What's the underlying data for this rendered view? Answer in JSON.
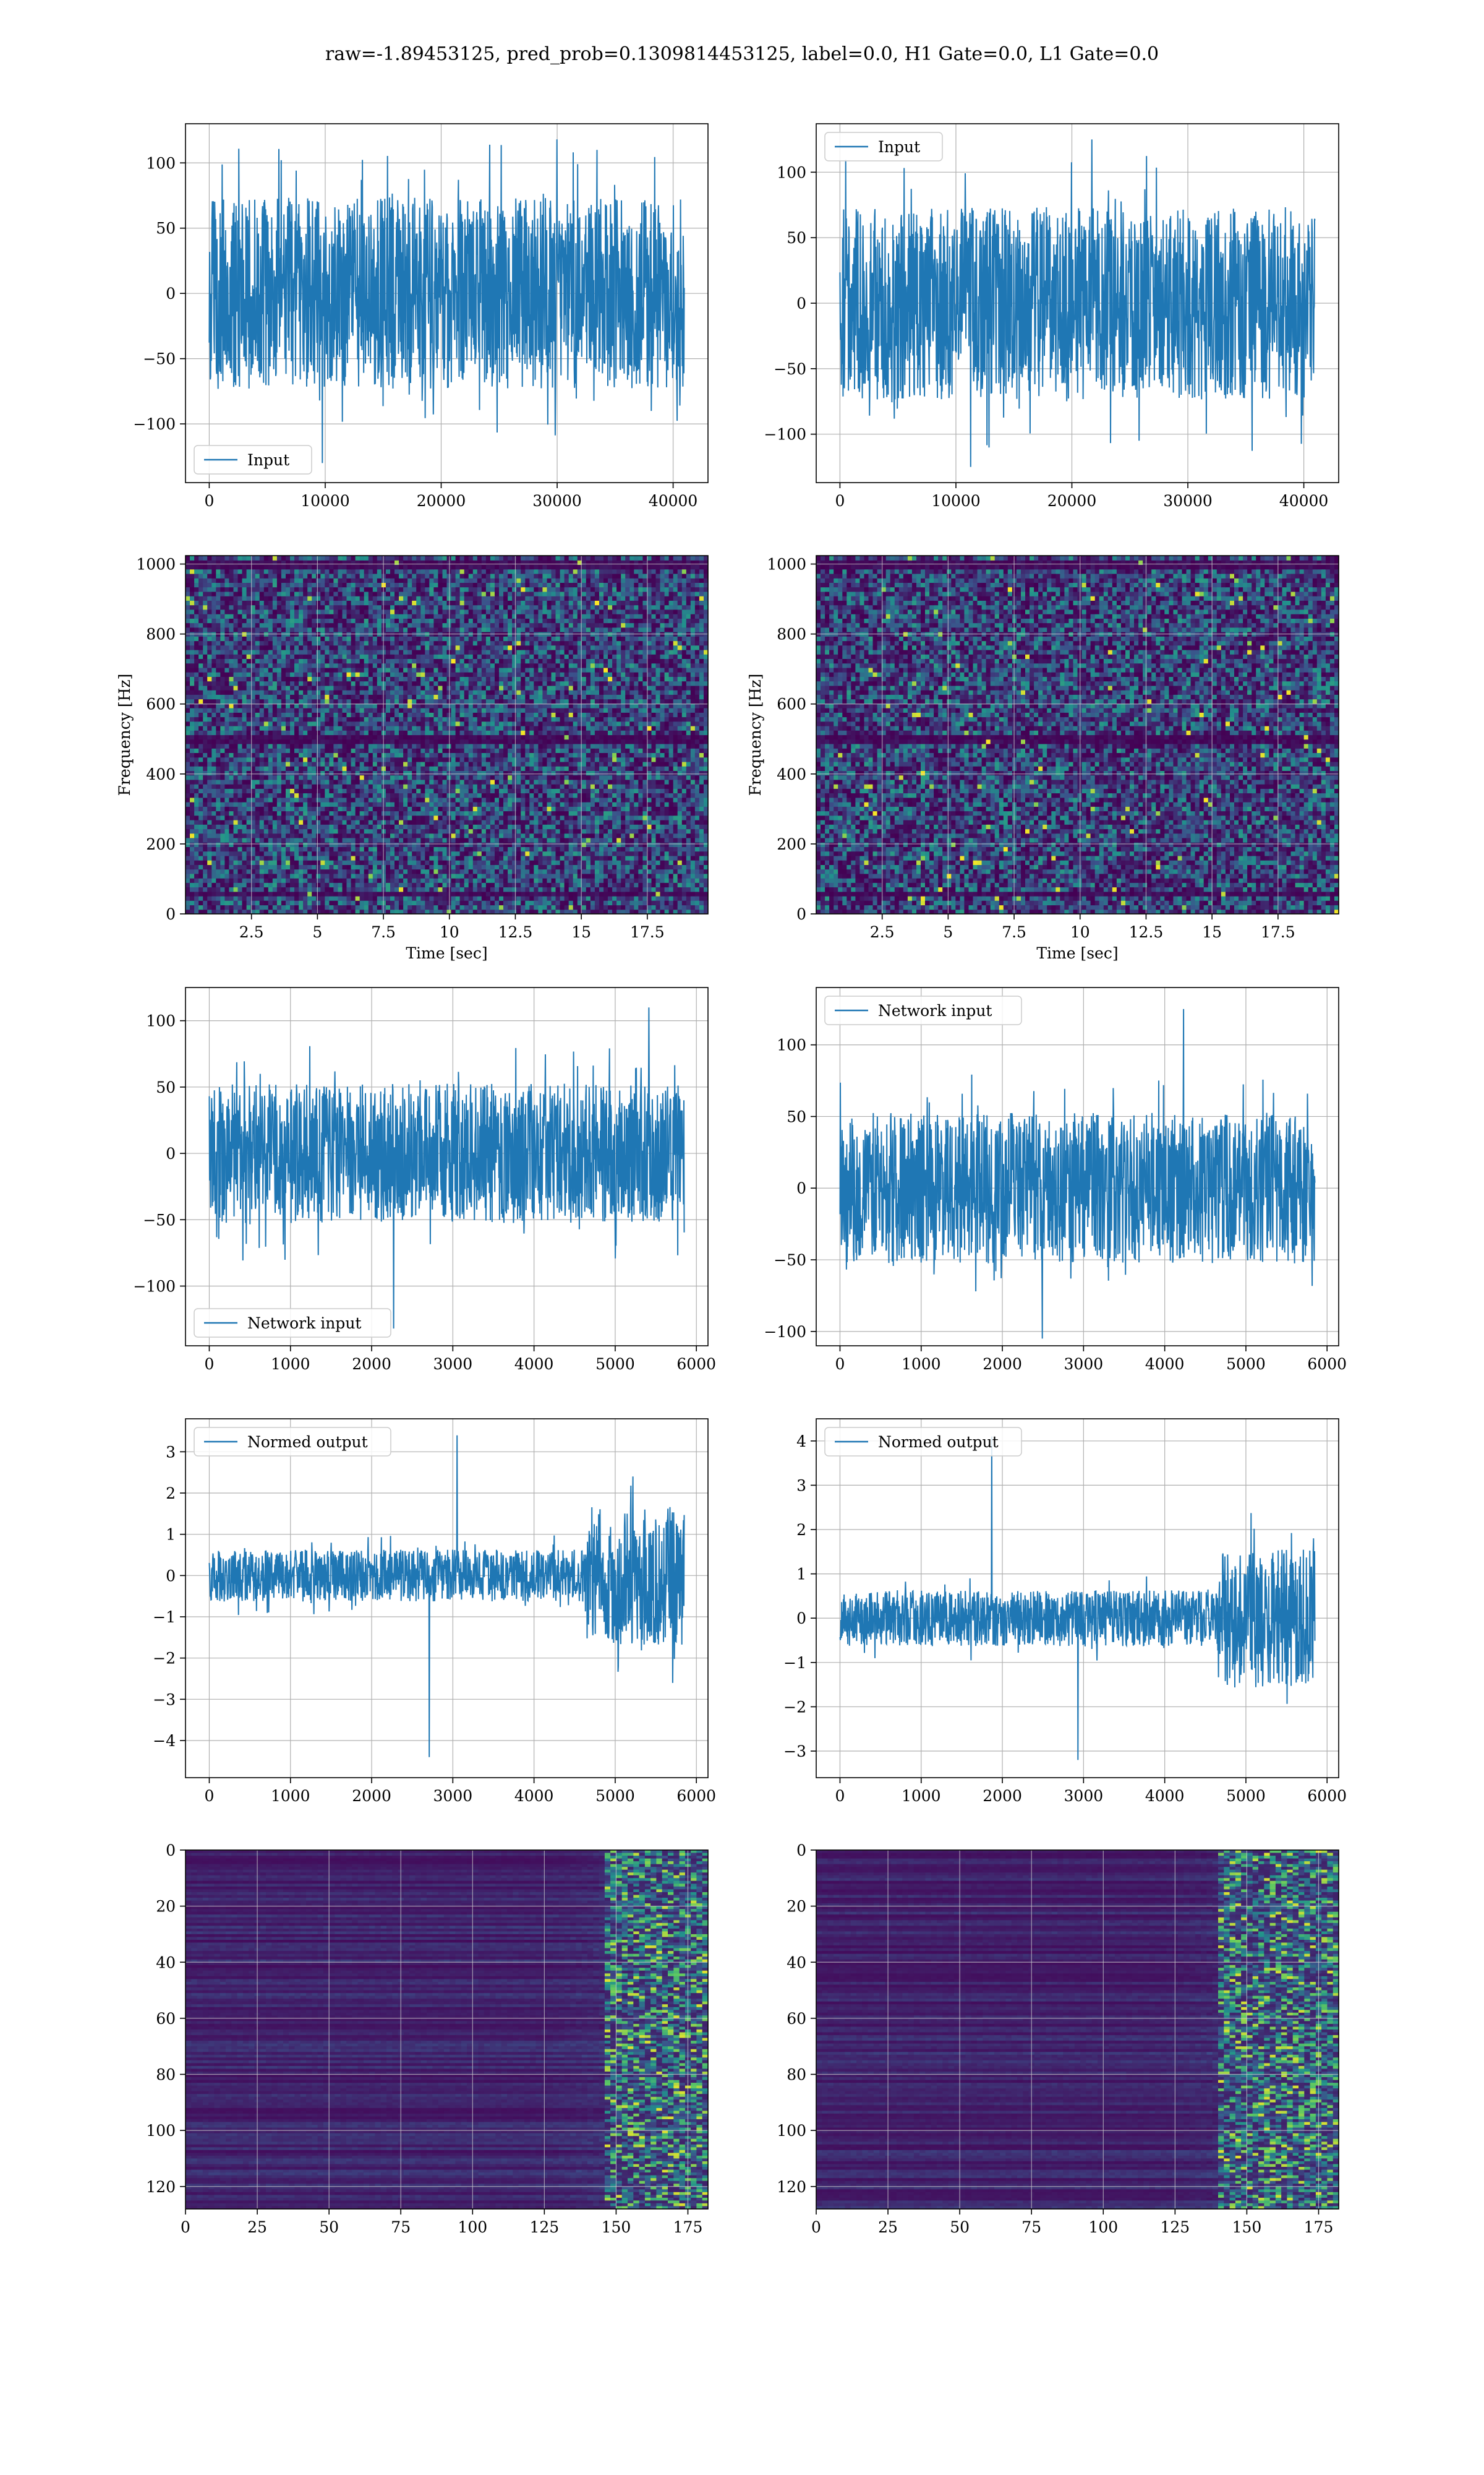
{
  "figure_title": "raw=-1.89453125, pred_prob=0.1309814453125, label=0.0, H1 Gate=0.0, L1 Gate=0.0",
  "colors": {
    "series": "#1f77b4",
    "viridis_dark": "#440154",
    "viridis_mid": "#3b528b",
    "viridis_teal": "#21918c",
    "viridis_green": "#5ec962",
    "viridis_yellow": "#fde725",
    "grid": "#b0b0b0"
  },
  "chart_data": [
    {
      "id": "p1",
      "type": "line",
      "grid": true,
      "legend": "lower-left",
      "series": [
        {
          "name": "Input",
          "amplitude": 70,
          "peak_min": -130,
          "peak_max": 118
        }
      ],
      "x_range": [
        0,
        40960
      ],
      "xlim": [
        -2048,
        43008
      ],
      "ylim": [
        -145,
        130
      ],
      "xticks": [
        0,
        10000,
        20000,
        30000,
        40000
      ],
      "yticks": [
        -100,
        -50,
        0,
        50,
        100
      ],
      "xlabel": "",
      "ylabel": ""
    },
    {
      "id": "p2",
      "type": "line",
      "grid": true,
      "legend": "upper-left",
      "series": [
        {
          "name": "Input",
          "amplitude": 70,
          "peak_min": -125,
          "peak_max": 125
        }
      ],
      "x_range": [
        0,
        40960
      ],
      "xlim": [
        -2048,
        43008
      ],
      "ylim": [
        -137,
        137
      ],
      "xticks": [
        0,
        10000,
        20000,
        30000,
        40000
      ],
      "yticks": [
        -100,
        -50,
        0,
        50,
        100
      ],
      "xlabel": "",
      "ylabel": ""
    },
    {
      "id": "p3",
      "type": "heatmap",
      "grid": true,
      "kind": "spectrogram",
      "xlim": [
        0,
        19.8
      ],
      "ylim": [
        0,
        1024
      ],
      "xticks": [
        2.5,
        5.0,
        7.5,
        10.0,
        12.5,
        15.0,
        17.5
      ],
      "yticks": [
        0,
        200,
        400,
        600,
        800,
        1000
      ],
      "xlabel": "Time [sec]",
      "ylabel": "Frequency [Hz]",
      "dark_bands_hz": [
        60,
        500,
        1000
      ],
      "seed": 11
    },
    {
      "id": "p4",
      "type": "heatmap",
      "grid": true,
      "kind": "spectrogram",
      "xlim": [
        0,
        19.8
      ],
      "ylim": [
        0,
        1024
      ],
      "xticks": [
        2.5,
        5.0,
        7.5,
        10.0,
        12.5,
        15.0,
        17.5
      ],
      "yticks": [
        0,
        200,
        400,
        600,
        800,
        1000
      ],
      "xlabel": "Time [sec]",
      "ylabel": "Frequency [Hz]",
      "dark_bands_hz": [
        60,
        500,
        1000
      ],
      "seed": 23
    },
    {
      "id": "p5",
      "type": "line",
      "grid": true,
      "legend": "lower-left",
      "series": [
        {
          "name": "Network input",
          "amplitude": 50,
          "peak_min": -132,
          "peak_max": 110
        }
      ],
      "x_range": [
        0,
        5850
      ],
      "xlim": [
        -293,
        6143
      ],
      "ylim": [
        -145,
        125
      ],
      "xticks": [
        0,
        1000,
        2000,
        3000,
        4000,
        5000,
        6000
      ],
      "yticks": [
        -100,
        -50,
        0,
        50,
        100
      ],
      "xlabel": "",
      "ylabel": ""
    },
    {
      "id": "p6",
      "type": "line",
      "grid": true,
      "legend": "upper-left",
      "series": [
        {
          "name": "Network input",
          "amplitude": 50,
          "peak_min": -105,
          "peak_max": 125
        }
      ],
      "x_range": [
        0,
        5850
      ],
      "xlim": [
        -293,
        6143
      ],
      "ylim": [
        -110,
        140
      ],
      "xticks": [
        0,
        1000,
        2000,
        3000,
        4000,
        5000,
        6000
      ],
      "yticks": [
        -100,
        -50,
        0,
        50,
        100
      ],
      "xlabel": "",
      "ylabel": ""
    },
    {
      "id": "p7",
      "type": "line",
      "grid": true,
      "legend": "upper-left",
      "series": [
        {
          "name": "Normed output",
          "amplitude": 0.6,
          "burst_from": 4650,
          "burst_amplitude": 1.6,
          "peak_min": -4.4,
          "peak_max": 3.4
        }
      ],
      "x_range": [
        0,
        5850
      ],
      "xlim": [
        -293,
        6143
      ],
      "ylim": [
        -4.9,
        3.8
      ],
      "xticks": [
        0,
        1000,
        2000,
        3000,
        4000,
        5000,
        6000
      ],
      "yticks": [
        -4,
        -3,
        -2,
        -1,
        0,
        1,
        2,
        3
      ],
      "xlabel": "",
      "ylabel": ""
    },
    {
      "id": "p8",
      "type": "line",
      "grid": true,
      "legend": "upper-left",
      "series": [
        {
          "name": "Normed output",
          "amplitude": 0.6,
          "burst_from": 4650,
          "burst_amplitude": 1.5,
          "peak_min": -3.2,
          "peak_max": 4.1
        }
      ],
      "x_range": [
        0,
        5850
      ],
      "xlim": [
        -293,
        6143
      ],
      "ylim": [
        -3.6,
        4.5
      ],
      "xticks": [
        0,
        1000,
        2000,
        3000,
        4000,
        5000,
        6000
      ],
      "yticks": [
        -3,
        -2,
        -1,
        0,
        1,
        2,
        3,
        4
      ],
      "xlabel": "",
      "ylabel": ""
    },
    {
      "id": "p9",
      "type": "heatmap",
      "grid": true,
      "kind": "feature_map",
      "xlim": [
        0,
        182
      ],
      "ylim": [
        128,
        0
      ],
      "xticks": [
        0,
        25,
        50,
        75,
        100,
        125,
        150,
        175
      ],
      "yticks": [
        0,
        20,
        40,
        60,
        80,
        100,
        120
      ],
      "xlabel": "",
      "ylabel": "",
      "active_from": 145,
      "seed": 37
    },
    {
      "id": "p10",
      "type": "heatmap",
      "grid": true,
      "kind": "feature_map",
      "xlim": [
        0,
        182
      ],
      "ylim": [
        128,
        0
      ],
      "xticks": [
        0,
        25,
        50,
        75,
        100,
        125,
        150,
        175
      ],
      "yticks": [
        0,
        20,
        40,
        60,
        80,
        100,
        120
      ],
      "xlabel": "",
      "ylabel": "",
      "active_from": 140,
      "seed": 53
    }
  ]
}
